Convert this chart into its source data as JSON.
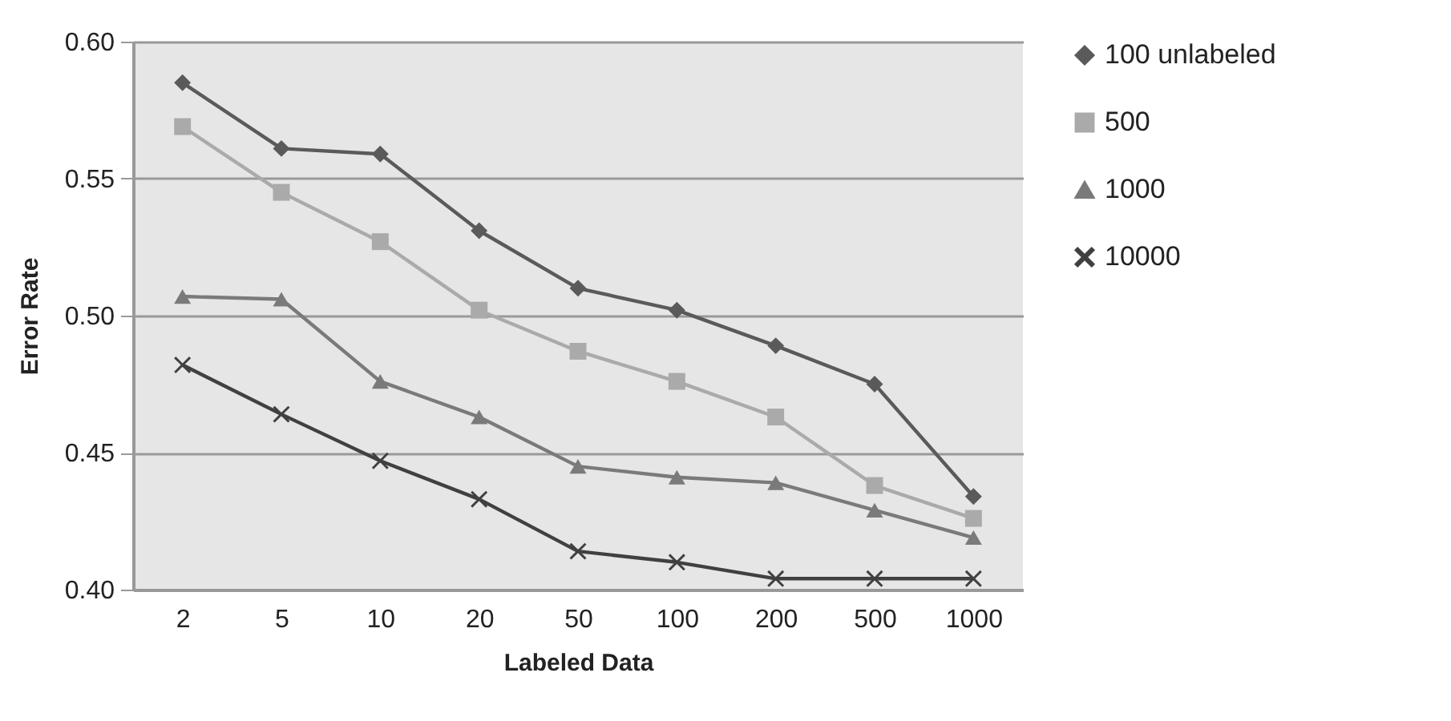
{
  "chart_data": {
    "type": "line",
    "xlabel": "Labeled Data",
    "ylabel": "Error Rate",
    "categories": [
      "2",
      "5",
      "10",
      "20",
      "50",
      "100",
      "200",
      "500",
      "1000"
    ],
    "series": [
      {
        "name": "100 unlabeled",
        "color": "#5a5a5a",
        "marker": "diamond",
        "values": [
          0.585,
          0.561,
          0.559,
          0.531,
          0.51,
          0.502,
          0.489,
          0.475,
          0.434
        ]
      },
      {
        "name": "500",
        "color": "#aaaaaa",
        "marker": "square",
        "values": [
          0.569,
          0.545,
          0.527,
          0.502,
          0.487,
          0.476,
          0.463,
          0.438,
          0.426
        ]
      },
      {
        "name": "1000",
        "color": "#7a7a7a",
        "marker": "triangle",
        "values": [
          0.507,
          0.506,
          0.476,
          0.463,
          0.445,
          0.441,
          0.439,
          0.429,
          0.419
        ]
      },
      {
        "name": "10000",
        "color": "#404040",
        "marker": "cross",
        "values": [
          0.482,
          0.464,
          0.447,
          0.433,
          0.414,
          0.41,
          0.404,
          0.404,
          0.404
        ]
      }
    ],
    "ylim": [
      0.4,
      0.6
    ],
    "yticks": [
      {
        "value": 0.4,
        "label": "0.40"
      },
      0.45,
      {
        "value": 0.5,
        "label": "0.50"
      },
      0.55,
      {
        "value": 0.6,
        "label": "0.60"
      }
    ],
    "grid": "y",
    "legend": "right"
  }
}
